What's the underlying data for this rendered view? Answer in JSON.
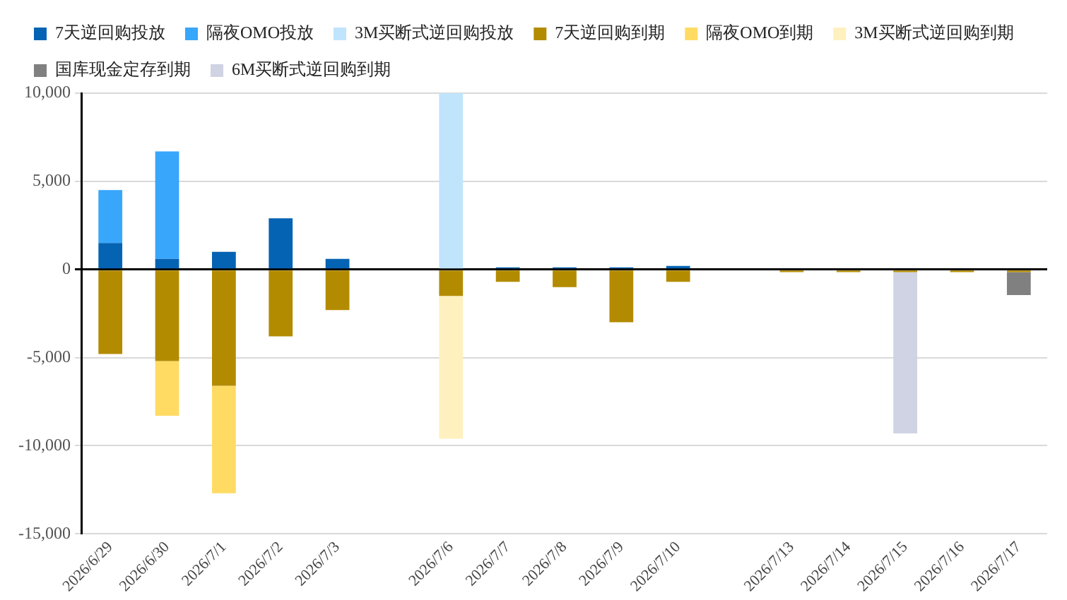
{
  "chart_data": {
    "type": "bar",
    "stacked": true,
    "categories": [
      "2026/6/29",
      "2026/6/30",
      "2026/7/1",
      "2026/7/2",
      "2026/7/3",
      null,
      "2026/7/6",
      "2026/7/7",
      "2026/7/8",
      "2026/7/9",
      "2026/7/10",
      null,
      "2026/7/13",
      "2026/7/14",
      "2026/7/15",
      "2026/7/16",
      "2026/7/17"
    ],
    "series": [
      {
        "name": "7天逆回购投放",
        "color": "#0563b3",
        "values": [
          1500,
          600,
          1000,
          2900,
          600,
          null,
          null,
          120,
          120,
          120,
          200,
          null,
          null,
          null,
          null,
          null,
          null
        ]
      },
      {
        "name": "隔夜OMO投放",
        "color": "#38a6fb",
        "values": [
          3000,
          6100,
          null,
          null,
          null,
          null,
          null,
          null,
          null,
          null,
          null,
          null,
          null,
          null,
          null,
          null,
          null
        ]
      },
      {
        "name": "3M买断式逆回购投放",
        "color": "#c0e4fc",
        "values": [
          null,
          null,
          null,
          null,
          null,
          null,
          10000,
          null,
          null,
          null,
          null,
          null,
          null,
          null,
          null,
          null,
          null
        ]
      },
      {
        "name": "7天逆回购到期",
        "color": "#b38b00",
        "values": [
          -4800,
          -5200,
          -6600,
          -3800,
          -2300,
          null,
          -1500,
          -700,
          -1000,
          -3000,
          -700,
          null,
          -150,
          -150,
          -150,
          -150,
          -150
        ]
      },
      {
        "name": "隔夜OMO到期",
        "color": "#ffdb63",
        "values": [
          null,
          -3100,
          -6100,
          null,
          null,
          null,
          null,
          null,
          null,
          null,
          null,
          null,
          null,
          null,
          null,
          null,
          null
        ]
      },
      {
        "name": "3M买断式逆回购到期",
        "color": "#fff0bf",
        "values": [
          null,
          null,
          null,
          null,
          null,
          null,
          -8100,
          null,
          null,
          null,
          null,
          null,
          null,
          null,
          null,
          null,
          null
        ]
      },
      {
        "name": "国库现金定存到期",
        "color": "#808080",
        "values": [
          null,
          null,
          null,
          null,
          null,
          null,
          null,
          null,
          null,
          null,
          null,
          null,
          null,
          null,
          null,
          null,
          -1300
        ]
      },
      {
        "name": "6M买断式逆回购到期",
        "color": "#cfd3e3",
        "values": [
          null,
          null,
          null,
          null,
          null,
          null,
          null,
          null,
          null,
          null,
          null,
          null,
          null,
          null,
          -9150,
          null,
          null
        ]
      }
    ],
    "ylim": [
      -15000,
      10000
    ],
    "yticks": [
      {
        "value": -15000,
        "label": "-15,000"
      },
      {
        "value": -10000,
        "label": "-10,000"
      },
      {
        "value": -5000,
        "label": "-5,000"
      },
      {
        "value": 0,
        "label": "0"
      },
      {
        "value": 5000,
        "label": "5,000"
      },
      {
        "value": 10000,
        "label": "10,000"
      }
    ],
    "grid": "y",
    "legend": "top"
  }
}
